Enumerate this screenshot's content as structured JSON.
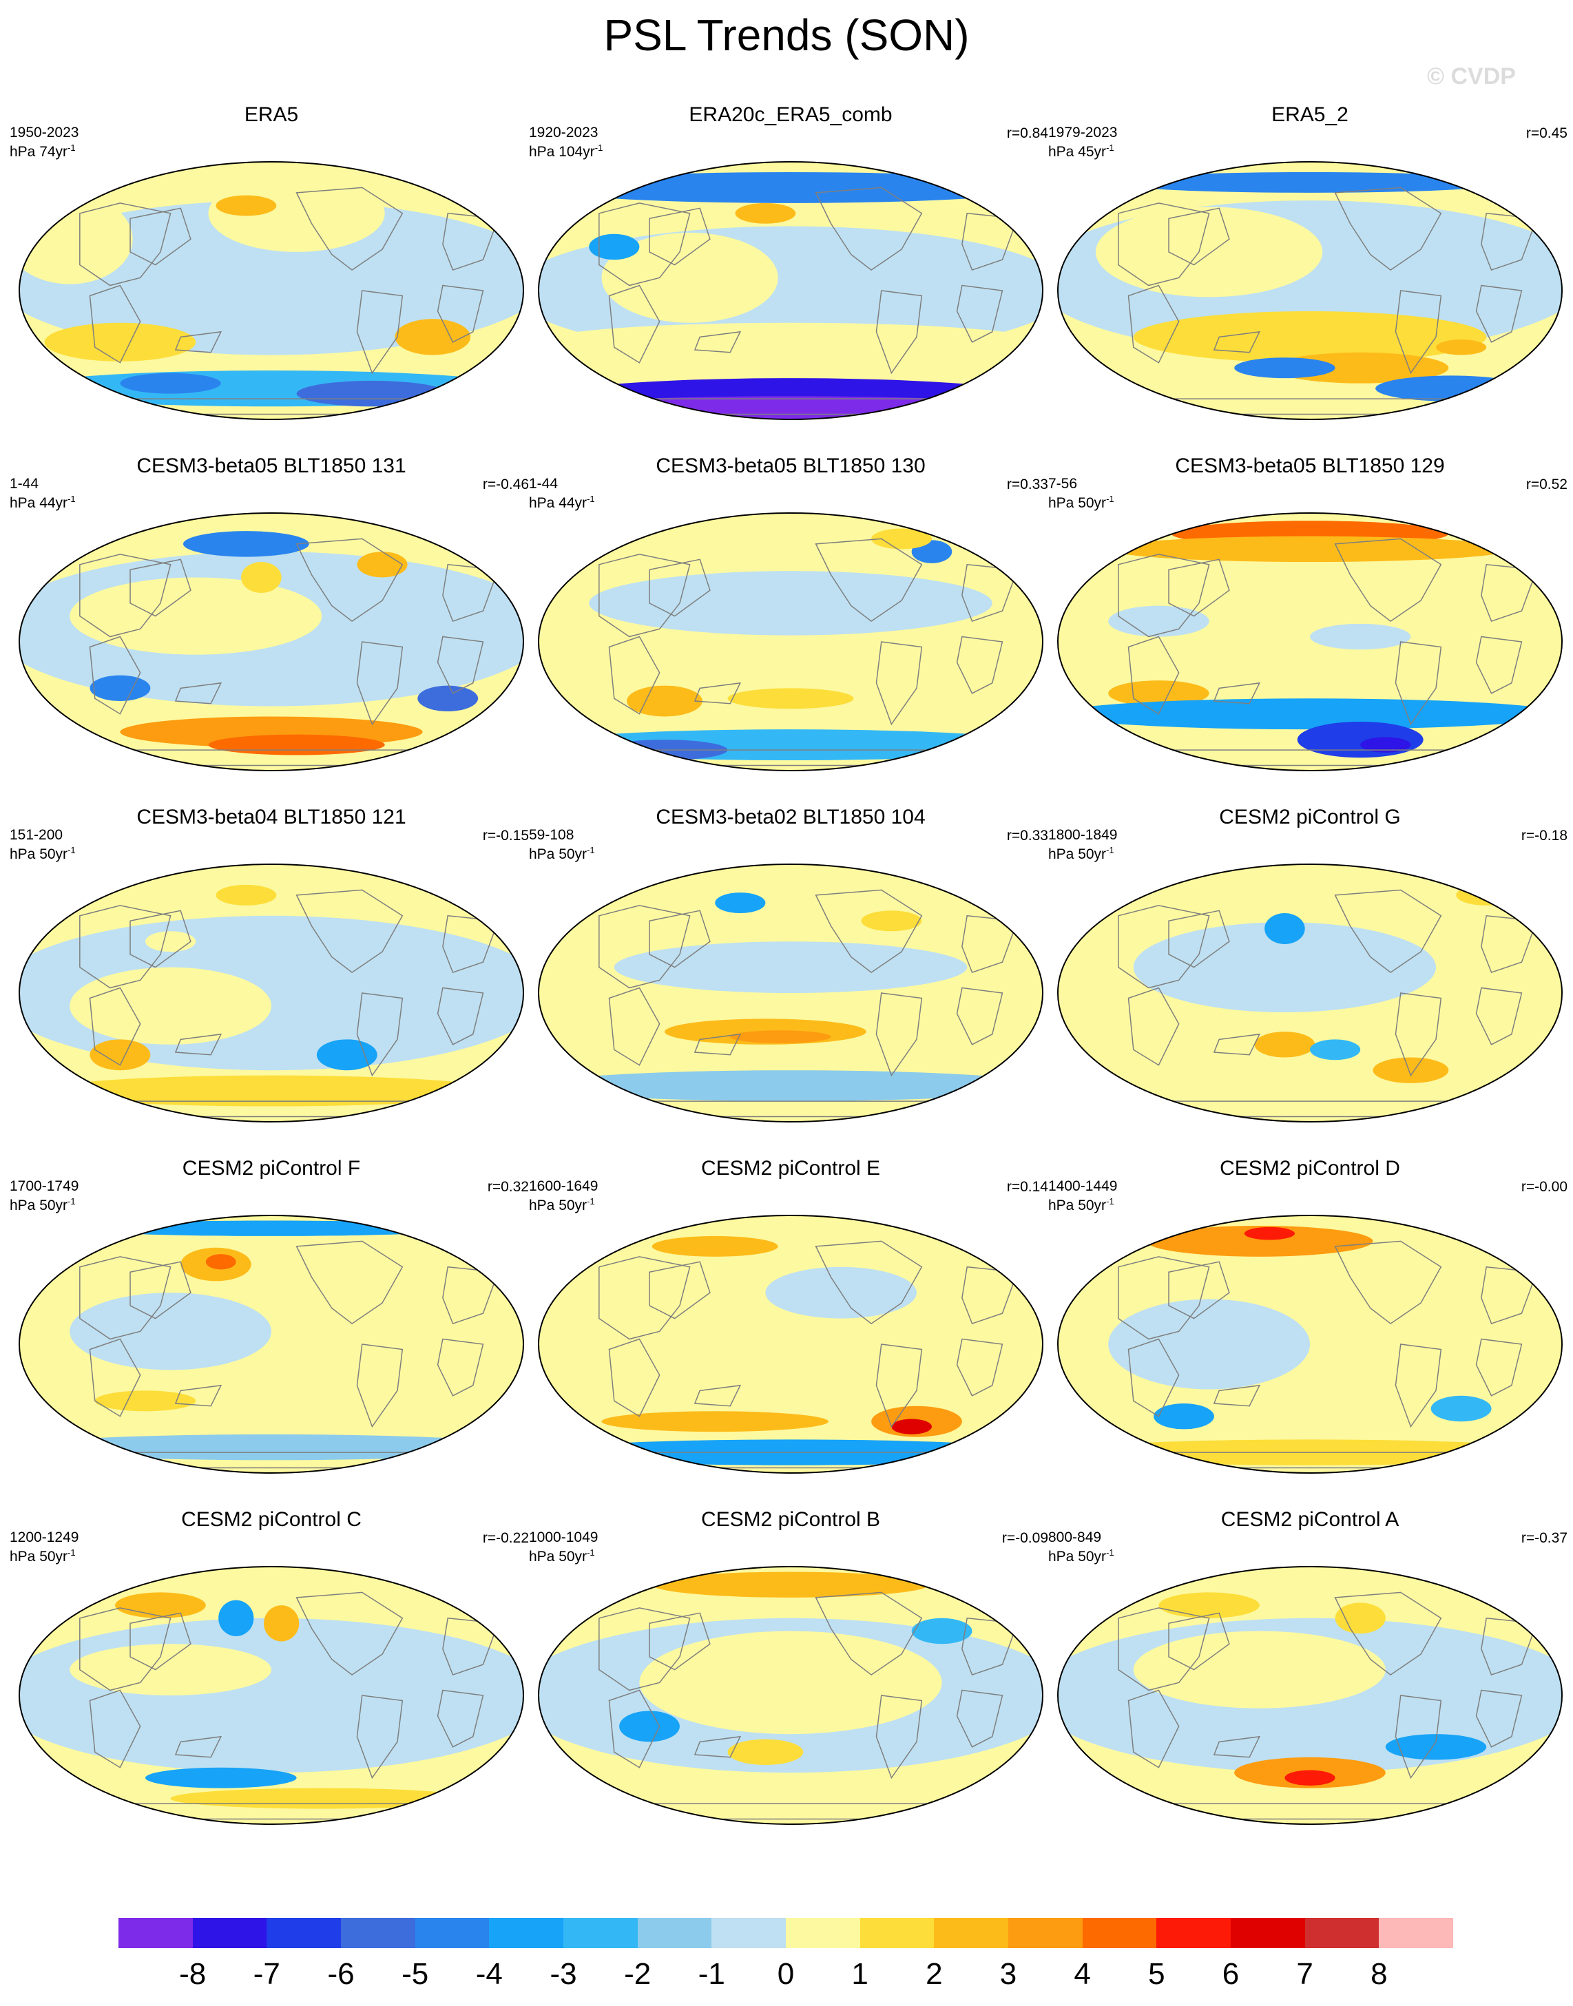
{
  "title": "PSL Trends (SON)",
  "watermark": "© CVDP",
  "palette": [
    "#7d2be8",
    "#2e14e6",
    "#1f3de8",
    "#3d6ddd",
    "#2a84ee",
    "#17a3f7",
    "#34b8f5",
    "#8ccbeb",
    "#bee0f2",
    "#fdf9a0",
    "#fddd39",
    "#fdbb1a",
    "#fd9c10",
    "#fd6a00",
    "#fd1a06",
    "#df0000",
    "#d02f2f",
    "#fdb8b8"
  ],
  "land_outline_color": "#7f7f7f",
  "colorbar": {
    "labels": [
      "-8",
      "-7",
      "-6",
      "-5",
      "-4",
      "-3",
      "-2",
      "-1",
      "0",
      "1",
      "2",
      "3",
      "4",
      "5",
      "6",
      "7",
      "8"
    ]
  },
  "panels": [
    {
      "title": "ERA5",
      "period": "1950-2023",
      "units_base": "hPa 74yr",
      "units_exp": "-1",
      "r": ""
    },
    {
      "title": "ERA20c_ERA5_comb",
      "period": "1920-2023",
      "units_base": "hPa 104yr",
      "units_exp": "-1",
      "r": "r=0.84"
    },
    {
      "title": "ERA5_2",
      "period": "1979-2023",
      "units_base": "hPa 45yr",
      "units_exp": "-1",
      "r": "r=0.45"
    },
    {
      "title": "CESM3-beta05 BLT1850 131",
      "period": "1-44",
      "units_base": "hPa 44yr",
      "units_exp": "-1",
      "r": "r=-0.46"
    },
    {
      "title": "CESM3-beta05 BLT1850 130",
      "period": "1-44",
      "units_base": "hPa 44yr",
      "units_exp": "-1",
      "r": "r=0.33"
    },
    {
      "title": "CESM3-beta05 BLT1850 129",
      "period": "7-56",
      "units_base": "hPa 50yr",
      "units_exp": "-1",
      "r": "r=0.52"
    },
    {
      "title": "CESM3-beta04 BLT1850 121",
      "period": "151-200",
      "units_base": "hPa 50yr",
      "units_exp": "-1",
      "r": "r=-0.15"
    },
    {
      "title": "CESM3-beta02 BLT1850 104",
      "period": "59-108",
      "units_base": "hPa 50yr",
      "units_exp": "-1",
      "r": "r=0.33"
    },
    {
      "title": "CESM2 piControl G",
      "period": "1800-1849",
      "units_base": "hPa 50yr",
      "units_exp": "-1",
      "r": "r=-0.18"
    },
    {
      "title": "CESM2 piControl F",
      "period": "1700-1749",
      "units_base": "hPa 50yr",
      "units_exp": "-1",
      "r": "r=0.32"
    },
    {
      "title": "CESM2 piControl E",
      "period": "1600-1649",
      "units_base": "hPa 50yr",
      "units_exp": "-1",
      "r": "r=0.14"
    },
    {
      "title": "CESM2 piControl D",
      "period": "1400-1449",
      "units_base": "hPa 50yr",
      "units_exp": "-1",
      "r": "r=-0.00"
    },
    {
      "title": "CESM2 piControl C",
      "period": "1200-1249",
      "units_base": "hPa 50yr",
      "units_exp": "-1",
      "r": "r=-0.22"
    },
    {
      "title": "CESM2 piControl B",
      "period": "1000-1049",
      "units_base": "hPa 50yr",
      "units_exp": "-1",
      "r": "r=-0.09"
    },
    {
      "title": "CESM2 piControl A",
      "period": "800-849",
      "units_base": "hPa 50yr",
      "units_exp": "-1",
      "r": "r=-0.37"
    }
  ]
}
